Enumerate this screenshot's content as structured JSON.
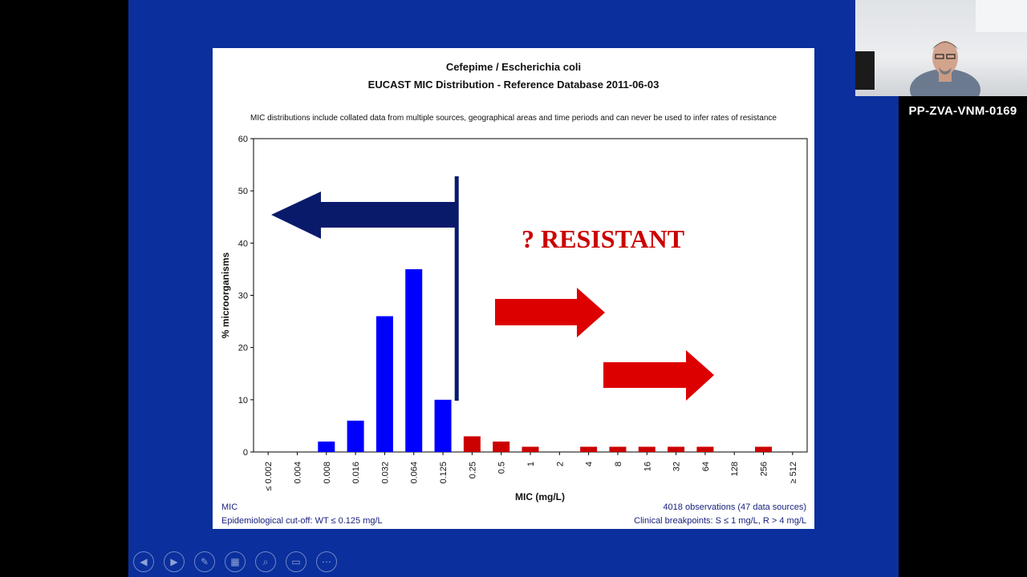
{
  "slide": {
    "title_line1": "Cefepime / Escherichia coli",
    "title_line2": "EUCAST MIC Distribution - Reference Database 2011-06-03",
    "note": "MIC distributions include collated data from multiple sources, geographical areas and time periods and can never be used to infer rates of resistance",
    "footer_left_1": "MIC",
    "footer_left_2": "Epidemiological cut-off: WT ≤ 0.125 mg/L",
    "footer_right_1": "4018 observations (47 data sources)",
    "footer_right_2": "Clinical breakpoints: S ≤ 1 mg/L, R > 4 mg/L",
    "annotation": "? RESISTANT"
  },
  "chart_data": {
    "type": "bar",
    "categories": [
      "≤ 0.002",
      "0.004",
      "0.008",
      "0.016",
      "0.032",
      "0.064",
      "0.125",
      "0.25",
      "0.5",
      "1",
      "2",
      "4",
      "8",
      "16",
      "32",
      "64",
      "128",
      "256",
      "≥ 512"
    ],
    "values": [
      0,
      0,
      2,
      6,
      26,
      35,
      10,
      3,
      2,
      1,
      0,
      1,
      1,
      1,
      1,
      1,
      0,
      1,
      0
    ],
    "bar_colors": [
      "#0000ff",
      "#0000ff",
      "#0000ff",
      "#0000ff",
      "#0000ff",
      "#0000ff",
      "#0000ff",
      "#cc0000",
      "#cc0000",
      "#cc0000",
      "#cc0000",
      "#cc0000",
      "#cc0000",
      "#cc0000",
      "#cc0000",
      "#cc0000",
      "#cc0000",
      "#cc0000",
      "#cc0000"
    ],
    "xlabel": "MIC (mg/L)",
    "ylabel": "% microorganisms",
    "ylim": [
      0,
      60
    ],
    "yticks": [
      0,
      10,
      20,
      30,
      40,
      50,
      60
    ],
    "cutoff_after_category": "0.125",
    "colors": {
      "wild_type": "#0000ff",
      "non_wild_type": "#cc0000",
      "arrow_left": "#0a1a6b",
      "arrow_right": "#dd0000",
      "annotation": "#cc0000"
    }
  },
  "presenter": {
    "label": "PP-ZVA-VNM-0169"
  },
  "controls": [
    {
      "name": "previous-slide-button",
      "glyph": "◀"
    },
    {
      "name": "next-slide-button",
      "glyph": "▶"
    },
    {
      "name": "pen-tool-button",
      "glyph": "✎"
    },
    {
      "name": "slide-sorter-button",
      "glyph": "▦"
    },
    {
      "name": "zoom-button",
      "glyph": "⌕"
    },
    {
      "name": "screen-button",
      "glyph": "▭"
    },
    {
      "name": "more-options-button",
      "glyph": "⋯"
    }
  ]
}
